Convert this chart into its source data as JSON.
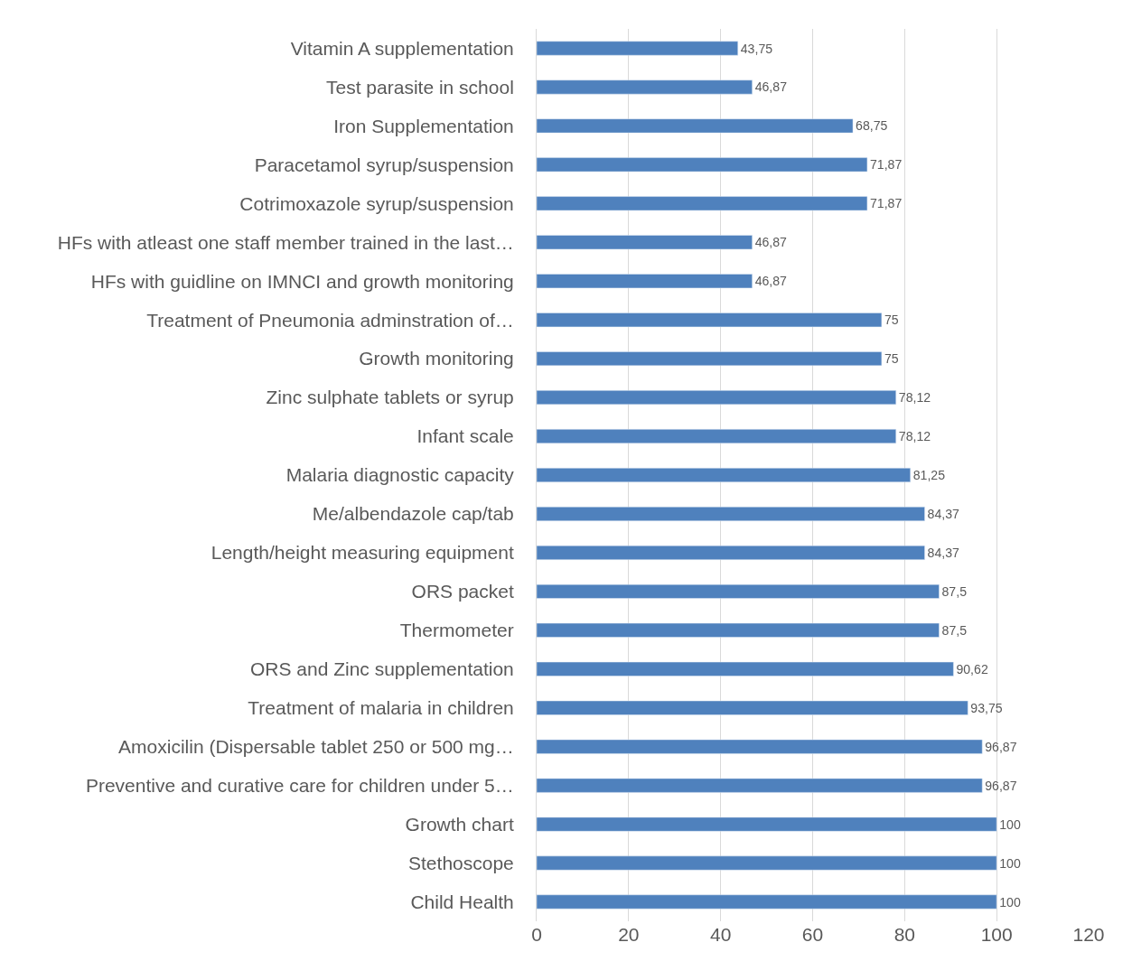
{
  "chart_data": {
    "type": "bar",
    "orientation": "horizontal",
    "categories": [
      "Vitamin A supplementation",
      "Test parasite in school",
      "Iron Supplementation",
      "Paracetamol syrup/suspension",
      "Cotrimoxazole syrup/suspension",
      "HFs with atleast one staff member trained in the last…",
      "HFs with guidline on IMNCI and growth monitoring",
      "Treatment of Pneumonia adminstration of…",
      "Growth monitoring",
      "Zinc sulphate tablets or syrup",
      "Infant scale",
      "Malaria diagnostic capacity",
      "Me/albendazole cap/tab",
      "Length/height measuring equipment",
      "ORS packet",
      "Thermometer",
      "ORS and Zinc supplementation",
      "Treatment of malaria in children",
      "Amoxicilin (Dispersable tablet 250 or 500 mg…",
      "Preventive and curative care for children under 5…",
      "Growth chart",
      "Stethoscope",
      "Child Health"
    ],
    "values": [
      43.75,
      46.87,
      68.75,
      71.87,
      71.87,
      46.87,
      46.87,
      75,
      75,
      78.12,
      78.12,
      81.25,
      84.37,
      84.37,
      87.5,
      87.5,
      90.62,
      93.75,
      96.87,
      96.87,
      100,
      100,
      100
    ],
    "value_labels": [
      "43,75",
      "46,87",
      "68,75",
      "71,87",
      "71,87",
      "46,87",
      "46,87",
      "75",
      "75",
      "78,12",
      "78,12",
      "81,25",
      "84,37",
      "84,37",
      "87,5",
      "87,5",
      "90,62",
      "93,75",
      "96,87",
      "96,87",
      "100",
      "100",
      "100"
    ],
    "color": "#4f81bd",
    "xlim": [
      0,
      120
    ],
    "xticks": [
      0,
      20,
      40,
      60,
      80,
      100,
      120
    ],
    "grid": "x"
  }
}
